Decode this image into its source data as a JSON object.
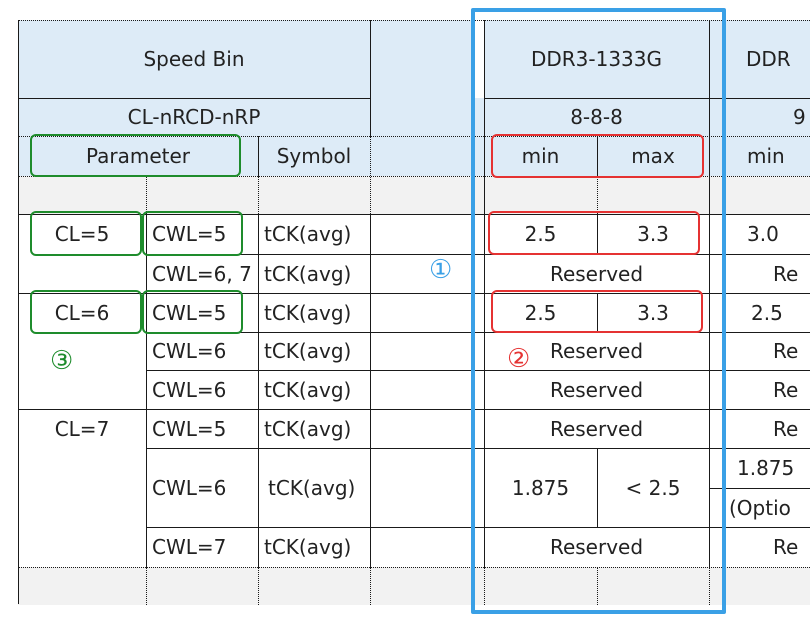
{
  "header": {
    "speed_bin": "Speed Bin",
    "grade": "DDR3-1333G",
    "grade_next_partial": "DDR",
    "cl_nrcd_nrp": "CL-nRCD-nRP",
    "timing": "8-8-8",
    "timing_next_partial": "9",
    "parameter": "Parameter",
    "symbol": "Symbol",
    "min": "min",
    "max": "max",
    "min_next": "min"
  },
  "rows": {
    "cl5": "CL=5",
    "cl6": "CL=6",
    "cl7": "CL=7",
    "cwl5_a": "CWL=5",
    "cwl67": "CWL=6, 7",
    "cwl5_b": "CWL=5",
    "cwl6_a": "CWL=6",
    "cwl6_b": "CWL=6",
    "cwl5_c": "CWL=5",
    "cwl6_c": "CWL=6",
    "cwl7": "CWL=7",
    "sym1": "tCK(avg)",
    "sym2": "tCK(avg)",
    "sym3": "tCK(avg)",
    "sym4": "tCK(avg)",
    "sym5": "tCK(avg)",
    "sym6": "tCK(avg)",
    "sym7": "tCK(avg)",
    "sym8": "tCK(avg)",
    "r1_min": "2.5",
    "r1_max": "3.3",
    "r1_next": "3.0",
    "r2": "Reserved",
    "r2_next": "Re",
    "r3_min": "2.5",
    "r3_max": "3.3",
    "r3_next": "2.5",
    "r4": "Reserved",
    "r4_next": "Re",
    "r5": "Reserved",
    "r5_next": "Re",
    "r6": "Reserved",
    "r6_next": "Re",
    "r7_min": "1.875",
    "r7_max": "< 2.5",
    "r7_next": "1.875",
    "r7_next_opt": "(Optio",
    "r8": "Reserved",
    "r8_next": "Re"
  },
  "annotations": {
    "mark1": "①",
    "mark2": "②",
    "mark3": "③",
    "blue": "#3aa0e6",
    "red": "#e53232",
    "green": "#1e8c2c"
  }
}
